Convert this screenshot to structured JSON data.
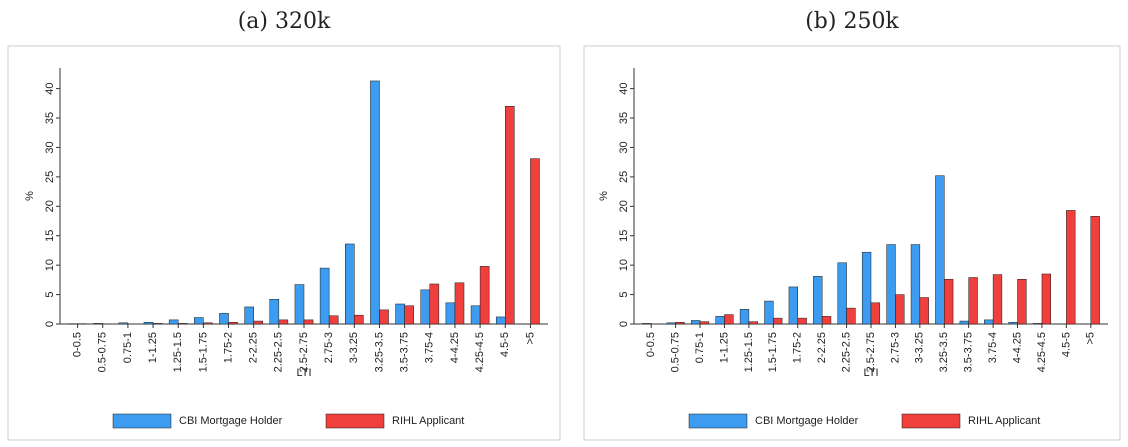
{
  "chart_data": [
    {
      "type": "bar",
      "title": "(a) 320k",
      "x_label": "LTI",
      "y_label": "%",
      "categories": [
        "0-0.5",
        "0.5-0.75",
        "0.75-1",
        "1-1.25",
        "1.25-1.5",
        "1.5-1.75",
        "1.75-2",
        "2-2.25",
        "2.25-2.5",
        "2.5-2.75",
        "2.75-3",
        "3-3.25",
        "3.25-3.5",
        "3.5-3.75",
        "3.75-4",
        "4-4.25",
        "4.25-4.5",
        "4.5-5",
        ">5"
      ],
      "series": [
        {
          "name": "CBI Mortgage Holder",
          "color": "#3d9cf0",
          "values": [
            0.05,
            0.1,
            0.2,
            0.3,
            0.7,
            1.1,
            1.8,
            2.9,
            4.2,
            6.7,
            9.5,
            13.6,
            41.3,
            3.4,
            5.8,
            3.6,
            3.1,
            1.2,
            0
          ]
        },
        {
          "name": "RIHL Applicant",
          "color": "#f0403e",
          "values": [
            0.05,
            0,
            0,
            0.1,
            0.1,
            0.2,
            0.3,
            0.5,
            0.7,
            0.7,
            1.4,
            1.5,
            2.4,
            3.1,
            6.8,
            7.0,
            9.8,
            37,
            28.1
          ]
        }
      ],
      "ylim": [
        0,
        43.5
      ],
      "yticks": [
        0,
        5,
        10,
        15,
        20,
        25,
        30,
        35,
        40
      ]
    },
    {
      "type": "bar",
      "title": "(b) 250k",
      "x_label": "LTI",
      "y_label": "%",
      "categories": [
        "0-0.5",
        "0.5-0.75",
        "0.75-1",
        "1-1.25",
        "1.25-1.5",
        "1.5-1.75",
        "1.75-2",
        "2-2.25",
        "2.25-2.5",
        "2.5-2.75",
        "2.75-3",
        "3-3.25",
        "3.25-3.5",
        "3.5-3.75",
        "3.75-4",
        "4-4.25",
        "4.25-4.5",
        "4.5-5",
        ">5"
      ],
      "series": [
        {
          "name": "CBI Mortgage Holder",
          "color": "#3d9cf0",
          "values": [
            0.1,
            0.2,
            0.6,
            1.3,
            2.5,
            3.9,
            6.3,
            8.1,
            10.4,
            12.2,
            13.5,
            13.5,
            25.2,
            0.5,
            0.7,
            0.3,
            0.1,
            0,
            0
          ]
        },
        {
          "name": "RIHL Applicant",
          "color": "#f0403e",
          "values": [
            0,
            0.3,
            0.4,
            1.6,
            0.4,
            1.0,
            1.0,
            1.3,
            2.7,
            3.6,
            5.0,
            4.5,
            7.6,
            7.9,
            8.4,
            7.6,
            8.5,
            19.3,
            18.3
          ]
        }
      ],
      "ylim": [
        0,
        43.5
      ],
      "yticks": [
        0,
        5,
        10,
        15,
        20,
        25,
        30,
        35,
        40
      ]
    }
  ]
}
